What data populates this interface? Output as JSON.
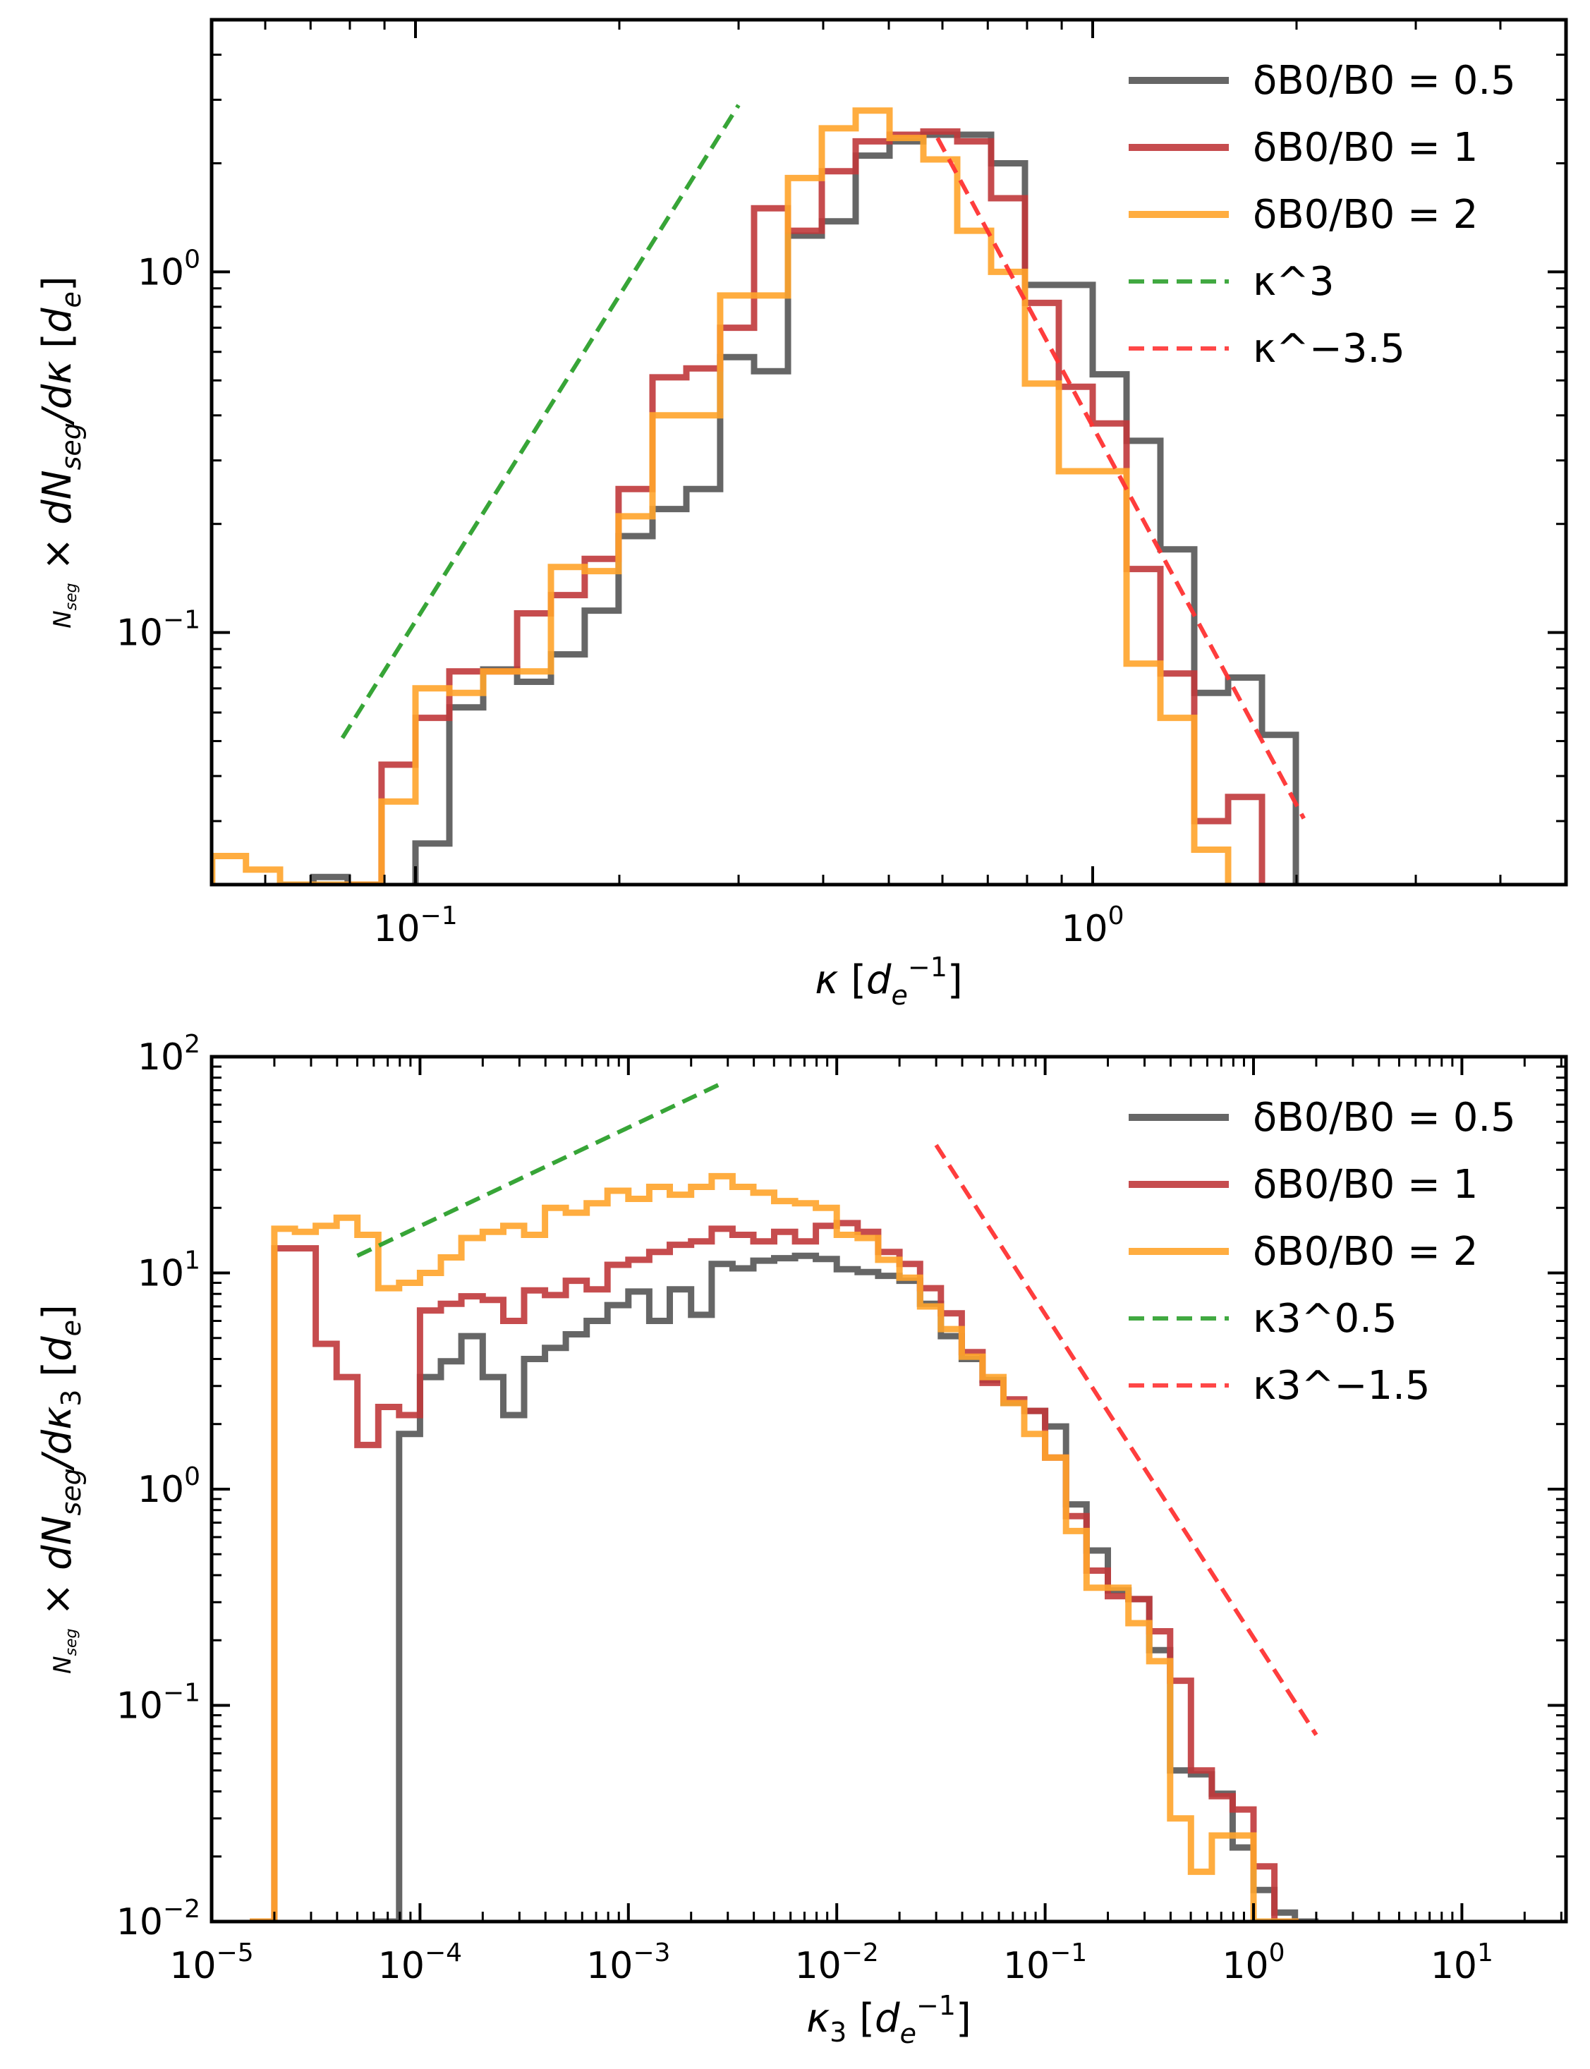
{
  "chart_data": [
    {
      "type": "line",
      "step": true,
      "xscale": "log",
      "yscale": "log",
      "xlim": [
        0.05,
        5.0
      ],
      "ylim": [
        0.02,
        5.0
      ],
      "xlabel": "κ  [d_e^{-1}]",
      "ylabel": "1/N_seg × dN_seg/dκ  [d_e]",
      "xticks": [
        {
          "v": 0.1,
          "b": "10",
          "e": "−1"
        },
        {
          "v": 1,
          "b": "10",
          "e": "0"
        }
      ],
      "yticks": [
        {
          "v": 0.1,
          "b": "10",
          "e": "−1"
        },
        {
          "v": 1,
          "b": "10",
          "e": "0"
        }
      ],
      "legend_position": "top-right",
      "series": [
        {
          "name": "δB0/B0 = 0.5",
          "color": "#555555",
          "x": [
            0.0707,
            0.0794,
            0.0891,
            0.1,
            0.1122,
            0.1259,
            0.1413,
            0.1585,
            0.1778,
            0.1995,
            0.2239,
            0.2512,
            0.2818,
            0.3162,
            0.3548,
            0.3981,
            0.4467,
            0.5012,
            0.5623,
            0.631,
            0.7079,
            0.7943,
            0.8913,
            1.0,
            1.122,
            1.2589,
            1.4125,
            1.5849,
            1.7783
          ],
          "y": [
            0.021,
            0.019,
            0.019,
            0.026,
            0.062,
            0.079,
            0.073,
            0.087,
            0.115,
            0.185,
            0.22,
            0.25,
            0.58,
            0.53,
            1.26,
            1.38,
            2.1,
            2.3,
            2.4,
            2.4,
            2.0,
            0.92,
            0.92,
            0.52,
            0.34,
            0.17,
            0.068,
            0.075,
            0.052
          ]
        },
        {
          "name": "δB0/B0 = 1",
          "color": "#c0393b",
          "x": [
            0.0794,
            0.0891,
            0.1,
            0.1122,
            0.1259,
            0.1413,
            0.1585,
            0.1778,
            0.1995,
            0.2239,
            0.2512,
            0.2818,
            0.3162,
            0.3548,
            0.3981,
            0.4467,
            0.5012,
            0.5623,
            0.631,
            0.7079,
            0.7943,
            0.8913,
            1.0,
            1.122,
            1.2589,
            1.4125,
            1.5849
          ],
          "y": [
            0.02,
            0.043,
            0.058,
            0.078,
            0.078,
            0.113,
            0.127,
            0.16,
            0.25,
            0.51,
            0.54,
            0.7,
            1.5,
            1.3,
            1.9,
            2.3,
            2.4,
            2.45,
            2.3,
            1.6,
            0.82,
            0.48,
            0.38,
            0.15,
            0.077,
            0.03,
            0.035
          ]
        },
        {
          "name": "δB0/B0 = 2",
          "color": "#ffa42b",
          "x": [
            0.0501,
            0.0562,
            0.0631,
            0.0708,
            0.0794,
            0.0891,
            0.1,
            0.1122,
            0.1259,
            0.1413,
            0.1585,
            0.1778,
            0.1995,
            0.2239,
            0.2512,
            0.2818,
            0.3162,
            0.3548,
            0.3981,
            0.4467,
            0.5012,
            0.5623,
            0.631,
            0.7079,
            0.7943,
            0.8913,
            1.0,
            1.122,
            1.2589,
            1.4125,
            1.5849
          ],
          "y": [
            0.024,
            0.022,
            0.02,
            0.02,
            0.02,
            0.034,
            0.07,
            0.068,
            0.078,
            0.078,
            0.152,
            0.148,
            0.21,
            0.4,
            0.4,
            0.86,
            0.86,
            1.82,
            2.5,
            2.8,
            2.35,
            2.05,
            1.3,
            1.0,
            0.49,
            0.28,
            0.28,
            0.082,
            0.058,
            0.025,
            0.019
          ]
        },
        {
          "name": "κ^3",
          "color": "#2ca02c",
          "dashed": true,
          "x": [
            0.078,
            0.3
          ],
          "y": [
            0.051,
            2.9
          ]
        },
        {
          "name": "κ^−3.5",
          "color": "#ff3333",
          "dashed": true,
          "x": [
            0.59,
            2.05
          ],
          "y": [
            2.35,
            0.0305
          ]
        }
      ]
    },
    {
      "type": "line",
      "step": true,
      "xscale": "log",
      "yscale": "log",
      "xlim": [
        1e-05,
        31.6
      ],
      "ylim": [
        0.01,
        100
      ],
      "xlabel": "κ3  [d_e^{-1}]",
      "ylabel": "1/N_seg × dN_seg/dκ3  [d_e]",
      "xticks": [
        {
          "v": 1e-05,
          "b": "10",
          "e": "−5"
        },
        {
          "v": 0.0001,
          "b": "10",
          "e": "−4"
        },
        {
          "v": 0.001,
          "b": "10",
          "e": "−3"
        },
        {
          "v": 0.01,
          "b": "10",
          "e": "−2"
        },
        {
          "v": 0.1,
          "b": "10",
          "e": "−1"
        },
        {
          "v": 1,
          "b": "10",
          "e": "0"
        },
        {
          "v": 10,
          "b": "10",
          "e": "1"
        }
      ],
      "yticks": [
        {
          "v": 0.01,
          "b": "10",
          "e": "−2"
        },
        {
          "v": 0.1,
          "b": "10",
          "e": "−1"
        },
        {
          "v": 1,
          "b": "10",
          "e": "0"
        },
        {
          "v": 10,
          "b": "10",
          "e": "1"
        },
        {
          "v": 100,
          "b": "10",
          "e": "2"
        }
      ],
      "legend_position": "top-right",
      "series": [
        {
          "name": "δB0/B0 = 0.5",
          "color": "#555555",
          "x": [
            6.31e-05,
            7.94e-05,
            0.0001,
            0.000126,
            0.000158,
            0.0002,
            0.000251,
            0.000316,
            0.000398,
            0.000501,
            0.000631,
            0.000794,
            0.001,
            0.00126,
            0.00158,
            0.002,
            0.00251,
            0.00316,
            0.00398,
            0.00501,
            0.00631,
            0.00794,
            0.01,
            0.0126,
            0.0158,
            0.02,
            0.0251,
            0.0316,
            0.0398,
            0.0501,
            0.0631,
            0.0794,
            0.1,
            0.126,
            0.158,
            0.2,
            0.251,
            0.316,
            0.398,
            0.501,
            0.631,
            0.794,
            1.0,
            1.26,
            1.58
          ],
          "y": [
            0.01,
            1.8,
            3.3,
            3.9,
            5.1,
            3.3,
            2.2,
            4.0,
            4.5,
            5.2,
            6.0,
            7.1,
            8.2,
            6.0,
            8.4,
            6.4,
            11.0,
            10.5,
            11.4,
            11.7,
            12.0,
            11.6,
            10.4,
            10.1,
            9.7,
            9.2,
            7.2,
            5.1,
            4.0,
            3.2,
            2.5,
            2.3,
            1.95,
            0.85,
            0.52,
            0.34,
            0.31,
            0.18,
            0.05,
            0.048,
            0.039,
            0.022,
            0.014,
            0.011,
            0.01
          ]
        },
        {
          "name": "δB0/B0 = 1",
          "color": "#c0393b",
          "x": [
            1.58e-05,
            2e-05,
            2.51e-05,
            3.16e-05,
            3.98e-05,
            5.01e-05,
            6.31e-05,
            7.94e-05,
            0.0001,
            0.000126,
            0.000158,
            0.0002,
            0.000251,
            0.000316,
            0.000398,
            0.000501,
            0.000631,
            0.000794,
            0.001,
            0.00126,
            0.00158,
            0.002,
            0.00251,
            0.00316,
            0.00398,
            0.00501,
            0.00631,
            0.00794,
            0.01,
            0.0126,
            0.0158,
            0.02,
            0.0251,
            0.0316,
            0.0398,
            0.0501,
            0.0631,
            0.0794,
            0.1,
            0.126,
            0.158,
            0.2,
            0.251,
            0.316,
            0.398,
            0.501,
            0.631,
            0.794,
            1.0,
            1.26
          ],
          "y": [
            0.01,
            13.0,
            13.0,
            4.7,
            3.3,
            1.6,
            2.4,
            2.2,
            6.7,
            7.2,
            7.8,
            7.5,
            6.0,
            8.3,
            7.9,
            9.2,
            8.4,
            10.9,
            11.5,
            12.5,
            13.5,
            14.0,
            16.0,
            15.0,
            14.0,
            15.5,
            14.0,
            16.5,
            17.0,
            15.5,
            12.5,
            11.0,
            8.5,
            6.5,
            4.3,
            3.1,
            2.6,
            2.3,
            1.4,
            0.75,
            0.42,
            0.32,
            0.31,
            0.22,
            0.13,
            0.05,
            0.038,
            0.033,
            0.018,
            0.01
          ]
        },
        {
          "name": "δB0/B0 = 2",
          "color": "#ffa42b",
          "x": [
            1.58e-05,
            2e-05,
            2.51e-05,
            3.16e-05,
            3.98e-05,
            5.01e-05,
            6.31e-05,
            7.94e-05,
            0.0001,
            0.000126,
            0.000158,
            0.0002,
            0.000251,
            0.000316,
            0.000398,
            0.000501,
            0.000631,
            0.000794,
            0.001,
            0.00126,
            0.00158,
            0.002,
            0.00251,
            0.00316,
            0.00398,
            0.00501,
            0.00631,
            0.00794,
            0.01,
            0.0126,
            0.0158,
            0.02,
            0.0251,
            0.0316,
            0.0398,
            0.0501,
            0.0631,
            0.0794,
            0.1,
            0.126,
            0.158,
            0.2,
            0.251,
            0.316,
            0.398,
            0.501,
            0.631,
            0.794,
            1.0,
            1.26
          ],
          "y": [
            0.01,
            16.0,
            15.5,
            16.5,
            18.0,
            15.0,
            8.5,
            9.0,
            10.0,
            11.8,
            14.5,
            15.5,
            16.5,
            15.0,
            20.0,
            19.0,
            21.0,
            24.0,
            22.0,
            25.0,
            23.0,
            25.0,
            28.0,
            25.0,
            23.5,
            21.5,
            21.0,
            20.0,
            15.0,
            14.5,
            11.5,
            9.5,
            7.0,
            5.5,
            4.1,
            3.3,
            2.5,
            1.8,
            1.4,
            0.64,
            0.35,
            0.35,
            0.24,
            0.16,
            0.03,
            0.017,
            0.025,
            0.025,
            0.01,
            0.01
          ]
        },
        {
          "name": "κ3^0.5",
          "color": "#2ca02c",
          "dashed": true,
          "x": [
            5e-05,
            0.0027
          ],
          "y": [
            12.0,
            74.0
          ]
        },
        {
          "name": "κ3^−1.5",
          "color": "#ff3333",
          "dashed": true,
          "x": [
            0.03,
            2.0
          ],
          "y": [
            39.0,
            0.073
          ]
        }
      ]
    }
  ]
}
